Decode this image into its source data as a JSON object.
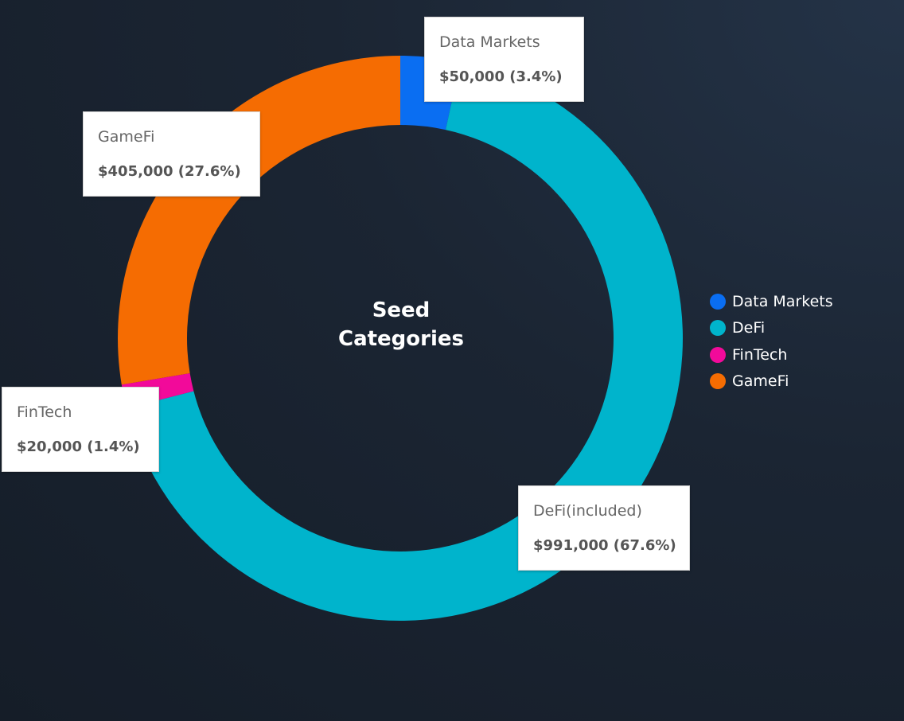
{
  "chart_data": {
    "type": "pie",
    "title": "Seed Categories",
    "title_lines": [
      "Seed",
      "Categories"
    ],
    "categories": [
      "Data Markets",
      "DeFi",
      "FinTech",
      "GameFi"
    ],
    "values": [
      50000,
      991000,
      20000,
      405000
    ],
    "colors": [
      "#0a6ef2",
      "#00b4cc",
      "#f20a9a",
      "#f56c02"
    ],
    "legend": {
      "placement": "right",
      "items": [
        {
          "label": "Data Markets",
          "color": "#0a6ef2"
        },
        {
          "label": "DeFi",
          "color": "#00b4cc"
        },
        {
          "label": "FinTech",
          "color": "#f20a9a"
        },
        {
          "label": "GameFi",
          "color": "#f56c02"
        }
      ]
    },
    "tooltips": [
      {
        "label": "Data Markets",
        "value_text": "$50,000 (3.4%)"
      },
      {
        "label": "GameFi",
        "value_text": "$405,000 (27.6%)"
      },
      {
        "label": "FinTech",
        "value_text": "$20,000 (1.4%)"
      },
      {
        "label": "DeFi(included)",
        "value_text": "$991,000 (67.6%)"
      }
    ]
  }
}
